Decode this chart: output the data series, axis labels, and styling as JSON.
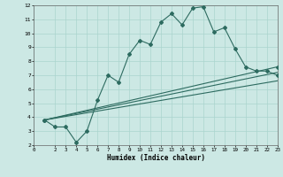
{
  "xlabel": "Humidex (Indice chaleur)",
  "bg_color": "#cce8e4",
  "line_color": "#2d6b60",
  "grid_color": "#aad4ce",
  "xlim": [
    0,
    23
  ],
  "ylim": [
    2,
    12
  ],
  "xticks": [
    0,
    2,
    3,
    4,
    5,
    6,
    7,
    8,
    9,
    10,
    11,
    12,
    13,
    14,
    15,
    16,
    17,
    18,
    19,
    20,
    21,
    22,
    23
  ],
  "yticks": [
    2,
    3,
    4,
    5,
    6,
    7,
    8,
    9,
    10,
    11,
    12
  ],
  "lines": [
    {
      "x": [
        1,
        2,
        3,
        4,
        5,
        6,
        7,
        8,
        9,
        10,
        11,
        12,
        13,
        14,
        15,
        16,
        17,
        18,
        19,
        20,
        21,
        22,
        23
      ],
      "y": [
        3.8,
        3.3,
        3.3,
        2.2,
        3.0,
        5.2,
        7.0,
        6.5,
        8.5,
        9.5,
        9.2,
        10.8,
        11.4,
        10.6,
        11.8,
        11.9,
        10.1,
        10.4,
        8.9,
        7.6,
        7.3,
        7.3,
        7.0
      ],
      "marker": true,
      "linewidth": 0.8
    },
    {
      "x": [
        1,
        23
      ],
      "y": [
        3.8,
        6.6
      ],
      "marker": false,
      "linewidth": 0.8
    },
    {
      "x": [
        1,
        23
      ],
      "y": [
        3.8,
        7.2
      ],
      "marker": false,
      "linewidth": 0.8
    },
    {
      "x": [
        1,
        23
      ],
      "y": [
        3.8,
        7.6
      ],
      "marker": true,
      "linewidth": 0.8
    }
  ]
}
